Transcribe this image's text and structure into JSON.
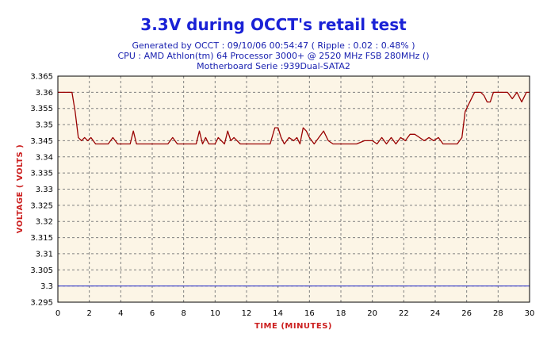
{
  "chart_data": {
    "type": "line",
    "title": "3.3V during OCCT's retail test",
    "subtitles": [
      "Generated by OCCT : 09/10/06 00:54:47 ( Ripple : 0.02 : 0.48% )",
      "CPU : AMD Athlon(tm) 64 Processor 3000+ @ 2520 MHz FSB 280MHz ()",
      "Motherboard Serie :939Dual-SATA2"
    ],
    "xlabel": "TIME (MINUTES)",
    "ylabel": "VOLTAGE ( VOLTS )",
    "xlim": [
      0,
      30
    ],
    "ylim": [
      3.295,
      3.365
    ],
    "xticks": [
      "0",
      "2",
      "4",
      "6",
      "8",
      "10",
      "12",
      "14",
      "16",
      "18",
      "20",
      "22",
      "24",
      "26",
      "28",
      "30"
    ],
    "yticks": [
      "3.365",
      "3.36",
      "3.355",
      "3.35",
      "3.345",
      "3.34",
      "3.335",
      "3.33",
      "3.325",
      "3.32",
      "3.315",
      "3.31",
      "3.305",
      "3.3",
      "3.295"
    ],
    "grid": true,
    "colors": {
      "plot_background": "#fcf5e6",
      "series": "#990000",
      "reference": "#1a22c8",
      "title": "#1a22d6",
      "subtitle": "#1a22b0",
      "axis_title": "#cc2020"
    },
    "reference_line": {
      "y": 3.3
    },
    "series": [
      {
        "x": [
          0,
          0.9,
          1.1,
          1.3,
          1.5,
          1.7,
          1.9,
          2.1,
          2.4,
          2.8,
          3.2,
          3.5,
          3.8,
          4.2,
          4.6,
          4.8,
          5.0,
          5.2,
          5.6,
          6.0,
          6.5,
          7.0,
          7.3,
          7.6,
          8.0,
          8.5,
          8.8,
          9.0,
          9.2,
          9.4,
          9.6,
          9.8,
          10.0,
          10.2,
          10.6,
          10.8,
          11.0,
          11.2,
          11.6,
          12.0,
          12.5,
          13.0,
          13.5,
          13.8,
          14.0,
          14.2,
          14.4,
          14.7,
          15.0,
          15.2,
          15.4,
          15.6,
          15.8,
          16.0,
          16.3,
          16.6,
          16.9,
          17.2,
          17.5,
          17.8,
          18.1,
          18.4,
          18.7,
          19.0,
          19.5,
          20.0,
          20.3,
          20.6,
          20.9,
          21.2,
          21.5,
          21.8,
          22.1,
          22.4,
          22.7,
          23.0,
          23.3,
          23.6,
          23.9,
          24.2,
          24.5,
          24.8,
          25.1,
          25.4,
          25.7,
          25.9,
          26.1,
          26.3,
          26.5,
          26.7,
          26.9,
          27.1,
          27.3,
          27.5,
          27.7,
          27.9,
          28.1,
          28.3,
          28.6,
          28.9,
          29.2,
          29.5,
          29.8,
          30.0
        ],
        "y": [
          3.36,
          3.36,
          3.354,
          3.346,
          3.345,
          3.346,
          3.345,
          3.346,
          3.344,
          3.344,
          3.344,
          3.346,
          3.344,
          3.344,
          3.344,
          3.348,
          3.344,
          3.344,
          3.344,
          3.344,
          3.344,
          3.344,
          3.346,
          3.344,
          3.344,
          3.344,
          3.344,
          3.348,
          3.344,
          3.346,
          3.344,
          3.344,
          3.344,
          3.346,
          3.344,
          3.348,
          3.345,
          3.346,
          3.344,
          3.344,
          3.344,
          3.344,
          3.344,
          3.349,
          3.349,
          3.346,
          3.344,
          3.346,
          3.345,
          3.346,
          3.344,
          3.349,
          3.348,
          3.346,
          3.344,
          3.346,
          3.348,
          3.345,
          3.344,
          3.344,
          3.344,
          3.344,
          3.344,
          3.344,
          3.345,
          3.345,
          3.344,
          3.346,
          3.344,
          3.346,
          3.344,
          3.346,
          3.345,
          3.347,
          3.347,
          3.346,
          3.345,
          3.346,
          3.345,
          3.346,
          3.344,
          3.344,
          3.344,
          3.344,
          3.346,
          3.354,
          3.356,
          3.358,
          3.36,
          3.36,
          3.36,
          3.359,
          3.357,
          3.357,
          3.36,
          3.36,
          3.36,
          3.36,
          3.36,
          3.358,
          3.36,
          3.357,
          3.36,
          3.36
        ]
      }
    ]
  }
}
